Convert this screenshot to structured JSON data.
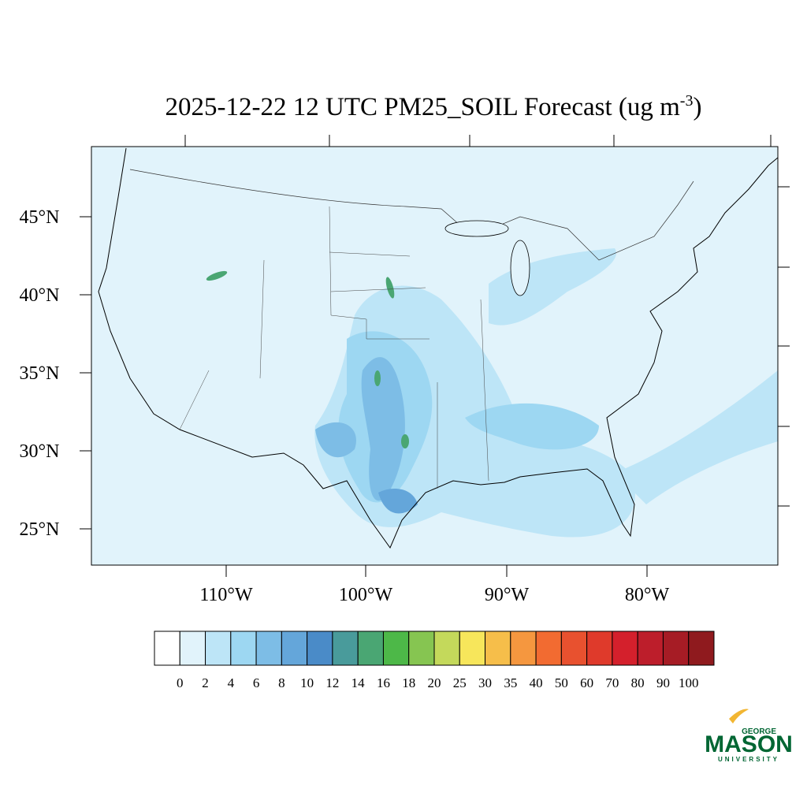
{
  "header": {
    "title": {
      "main": "2025-12-22 12 UTC PM25_SOIL Forecast (ug m",
      "superscript": "-3",
      "end": ")"
    }
  },
  "map": {
    "lat_labels": [
      "45°N",
      "40°N",
      "35°N",
      "30°N",
      "25°N"
    ],
    "lon_labels": [
      "110°W",
      "100°W",
      "90°W",
      "80°W"
    ]
  },
  "colorbar": {
    "colors": [
      "#ffffff",
      "#e1f3fb",
      "#bde5f7",
      "#9dd7f2",
      "#7dbde6",
      "#64a6da",
      "#4a8bc8",
      "#499b9b",
      "#4aa673",
      "#4db848",
      "#86c551",
      "#c4d95b",
      "#f7e65b",
      "#f6be4a",
      "#f5973f",
      "#f26b31",
      "#e8512f",
      "#df3a2b",
      "#d4202c",
      "#bd1e2b",
      "#a61c25",
      "#8f1a1e"
    ],
    "labels": [
      "0",
      "2",
      "4",
      "6",
      "8",
      "10",
      "12",
      "14",
      "16",
      "18",
      "20",
      "25",
      "30",
      "35",
      "40",
      "50",
      "60",
      "70",
      "80",
      "90",
      "100"
    ]
  },
  "logo": {
    "top": "GEORGE",
    "main": "MASON",
    "bottom": "UNIVERSITY"
  }
}
